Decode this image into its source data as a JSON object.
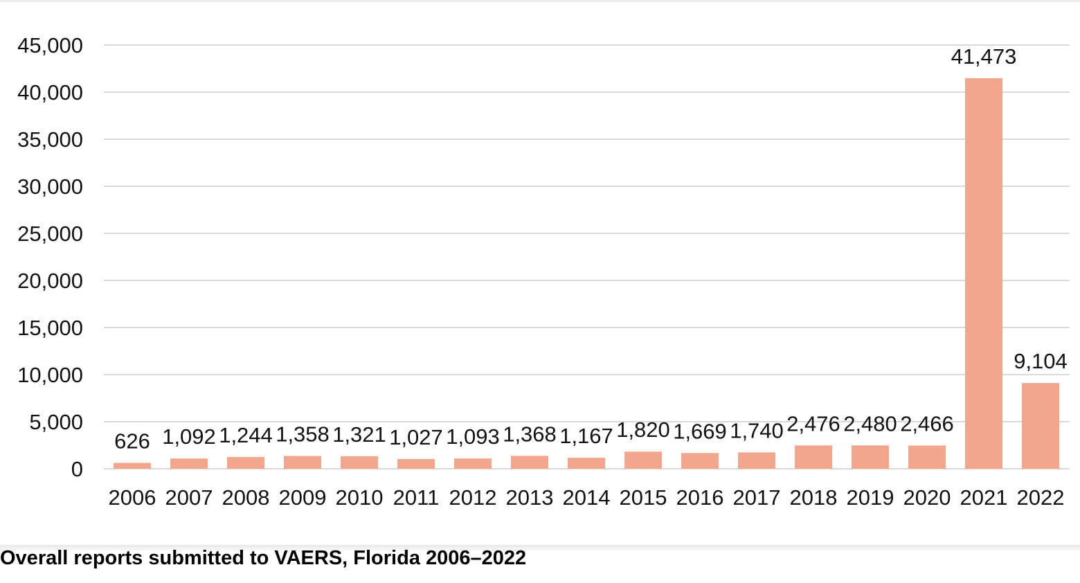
{
  "chart_data": {
    "type": "bar",
    "title": "Overall reports submitted to VAERS, Florida 2006–2022",
    "categories": [
      "2006",
      "2007",
      "2008",
      "2009",
      "2010",
      "2011",
      "2012",
      "2013",
      "2014",
      "2015",
      "2016",
      "2017",
      "2018",
      "2019",
      "2020",
      "2021",
      "2022"
    ],
    "values": [
      626,
      1092,
      1244,
      1358,
      1321,
      1027,
      1093,
      1368,
      1167,
      1820,
      1669,
      1740,
      2476,
      2480,
      2466,
      41473,
      9104
    ],
    "data_labels": [
      "626",
      "1,092",
      "1,244",
      "1,358",
      "1,321",
      "1,027",
      "1,093",
      "1,368",
      "1,167",
      "1,820",
      "1,669",
      "1,740",
      "2,476",
      "2,480",
      "2,466",
      "41,473",
      "9,104"
    ],
    "y_ticks": [
      0,
      5000,
      10000,
      15000,
      20000,
      25000,
      30000,
      35000,
      40000,
      45000
    ],
    "y_tick_labels": [
      "0",
      "5,000",
      "10,000",
      "15,000",
      "20,000",
      "25,000",
      "30,000",
      "35,000",
      "40,000",
      "45,000"
    ],
    "ylim": [
      0,
      45000
    ],
    "grid": true,
    "legend": "none",
    "bar_color": "#f4a68d"
  }
}
